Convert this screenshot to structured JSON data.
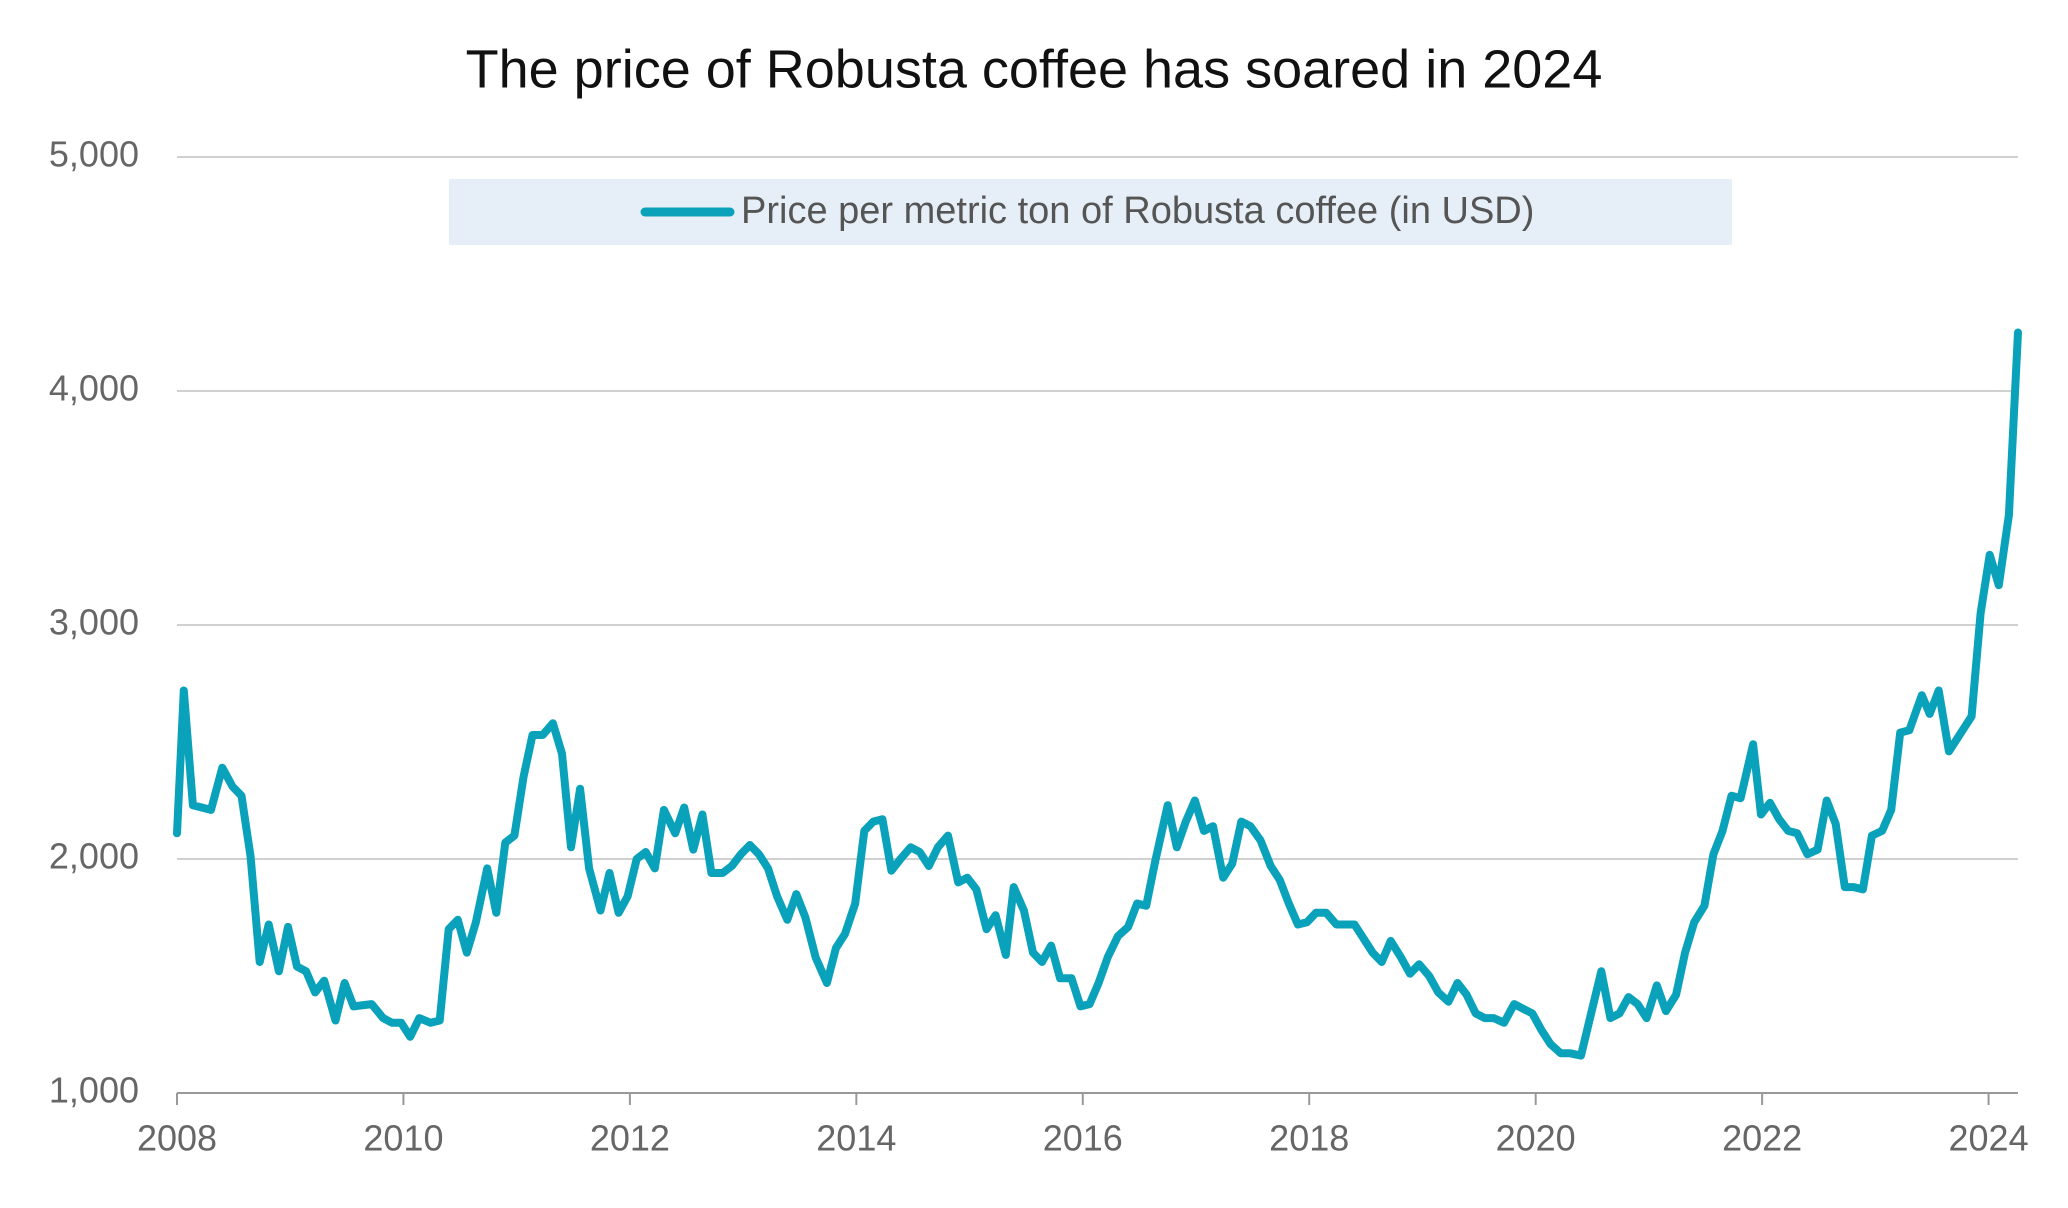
{
  "chart_data": {
    "type": "line",
    "title": "The price of Robusta coffee has soared in 2024",
    "x": [
      2008.0,
      2008.06,
      2008.14,
      2008.3,
      2008.4,
      2008.49,
      2008.57,
      2008.65,
      2008.73,
      2008.81,
      2008.9,
      2008.98,
      2009.06,
      2009.14,
      2009.22,
      2009.3,
      2009.4,
      2009.48,
      2009.56,
      2009.72,
      2009.82,
      2009.9,
      2009.98,
      2010.06,
      2010.14,
      2010.24,
      2010.32,
      2010.4,
      2010.48,
      2010.56,
      2010.64,
      2010.74,
      2010.82,
      2010.9,
      2010.98,
      2011.06,
      2011.14,
      2011.23,
      2011.32,
      2011.4,
      2011.48,
      2011.56,
      2011.64,
      2011.74,
      2011.82,
      2011.9,
      2011.98,
      2012.06,
      2012.14,
      2012.22,
      2012.3,
      2012.4,
      2012.48,
      2012.56,
      2012.64,
      2012.72,
      2012.82,
      2012.9,
      2012.98,
      2013.06,
      2013.14,
      2013.22,
      2013.3,
      2013.39,
      2013.47,
      2013.55,
      2013.64,
      2013.74,
      2013.82,
      2013.9,
      2013.99,
      2014.07,
      2014.15,
      2014.23,
      2014.31,
      2014.39,
      2014.48,
      2014.56,
      2014.64,
      2014.72,
      2014.81,
      2014.9,
      2014.98,
      2015.06,
      2015.15,
      2015.23,
      2015.32,
      2015.39,
      2015.48,
      2015.56,
      2015.64,
      2015.72,
      2015.8,
      2015.9,
      2015.98,
      2016.06,
      2016.14,
      2016.22,
      2016.31,
      2016.4,
      2016.48,
      2016.56,
      2016.64,
      2016.75,
      2016.83,
      2016.91,
      2016.99,
      2017.07,
      2017.15,
      2017.24,
      2017.32,
      2017.4,
      2017.48,
      2017.57,
      2017.66,
      2017.74,
      2017.82,
      2017.9,
      2017.98,
      2018.06,
      2018.15,
      2018.24,
      2018.4,
      2018.48,
      2018.56,
      2018.64,
      2018.72,
      2018.81,
      2018.89,
      2018.97,
      2019.06,
      2019.14,
      2019.23,
      2019.31,
      2019.39,
      2019.47,
      2019.55,
      2019.63,
      2019.72,
      2019.81,
      2019.89,
      2019.97,
      2020.05,
      2020.13,
      2020.22,
      2020.3,
      2020.4,
      2020.48,
      2020.58,
      2020.66,
      2020.74,
      2020.82,
      2020.9,
      2020.98,
      2021.07,
      2021.15,
      2021.24,
      2021.32,
      2021.4,
      2021.49,
      2021.57,
      2021.65,
      2021.73,
      2021.81,
      2021.92,
      2021.99,
      2022.07,
      2022.15,
      2022.23,
      2022.31,
      2022.4,
      2022.49,
      2022.57,
      2022.65,
      2022.73,
      2022.81,
      2022.89,
      2022.97,
      2023.06,
      2023.14,
      2023.22,
      2023.3,
      2023.41,
      2023.48,
      2023.56,
      2023.65,
      2023.85,
      2023.93,
      2024.01,
      2024.09,
      2024.18,
      2024.26
    ],
    "series": [
      {
        "name": "Price per metric ton of Robusta coffee (in USD)",
        "color": "#0aa2ba",
        "values": [
          2110,
          2720,
          2230,
          2210,
          2390,
          2310,
          2270,
          2010,
          1560,
          1720,
          1520,
          1710,
          1540,
          1520,
          1430,
          1480,
          1310,
          1470,
          1370,
          1380,
          1320,
          1300,
          1300,
          1240,
          1320,
          1300,
          1310,
          1700,
          1740,
          1600,
          1730,
          1960,
          1770,
          2070,
          2100,
          2350,
          2530,
          2530,
          2580,
          2450,
          2050,
          2300,
          1960,
          1780,
          1940,
          1770,
          1840,
          2000,
          2030,
          1960,
          2210,
          2110,
          2220,
          2040,
          2190,
          1940,
          1940,
          1970,
          2020,
          2060,
          2020,
          1960,
          1840,
          1740,
          1850,
          1750,
          1580,
          1470,
          1620,
          1680,
          1810,
          2120,
          2160,
          2170,
          1950,
          2000,
          2050,
          2030,
          1970,
          2050,
          2100,
          1900,
          1920,
          1870,
          1700,
          1760,
          1590,
          1880,
          1780,
          1600,
          1560,
          1630,
          1490,
          1490,
          1370,
          1380,
          1470,
          1580,
          1670,
          1710,
          1810,
          1800,
          1990,
          2230,
          2050,
          2160,
          2250,
          2120,
          2140,
          1920,
          1980,
          2160,
          2140,
          2080,
          1970,
          1910,
          1810,
          1720,
          1730,
          1770,
          1770,
          1720,
          1720,
          1660,
          1600,
          1560,
          1650,
          1580,
          1510,
          1550,
          1500,
          1430,
          1390,
          1470,
          1420,
          1340,
          1320,
          1320,
          1300,
          1380,
          1360,
          1340,
          1270,
          1210,
          1170,
          1170,
          1160,
          1320,
          1520,
          1320,
          1340,
          1410,
          1380,
          1320,
          1460,
          1350,
          1420,
          1600,
          1730,
          1800,
          2020,
          2120,
          2270,
          2260,
          2490,
          2190,
          2240,
          2170,
          2120,
          2110,
          2020,
          2040,
          2250,
          2150,
          1880,
          1880,
          1870,
          2100,
          2120,
          2210,
          2540,
          2550,
          2700,
          2620,
          2720,
          2460,
          2610,
          3050,
          3300,
          3170,
          3470,
          4250
        ]
      }
    ],
    "xlim": [
      2008,
      2024.26
    ],
    "xticks": [
      2008,
      2010,
      2012,
      2014,
      2016,
      2018,
      2020,
      2022,
      2024
    ],
    "ylim": [
      1000,
      5000
    ],
    "yticks": [
      {
        "value": 1000,
        "label": "1,000"
      },
      {
        "value": 2000,
        "label": "2,000"
      },
      {
        "value": 3000,
        "label": "3,000"
      },
      {
        "value": 4000,
        "label": "4,000"
      },
      {
        "value": 5000,
        "label": "5,000"
      }
    ],
    "grid": true,
    "legend": "top"
  }
}
